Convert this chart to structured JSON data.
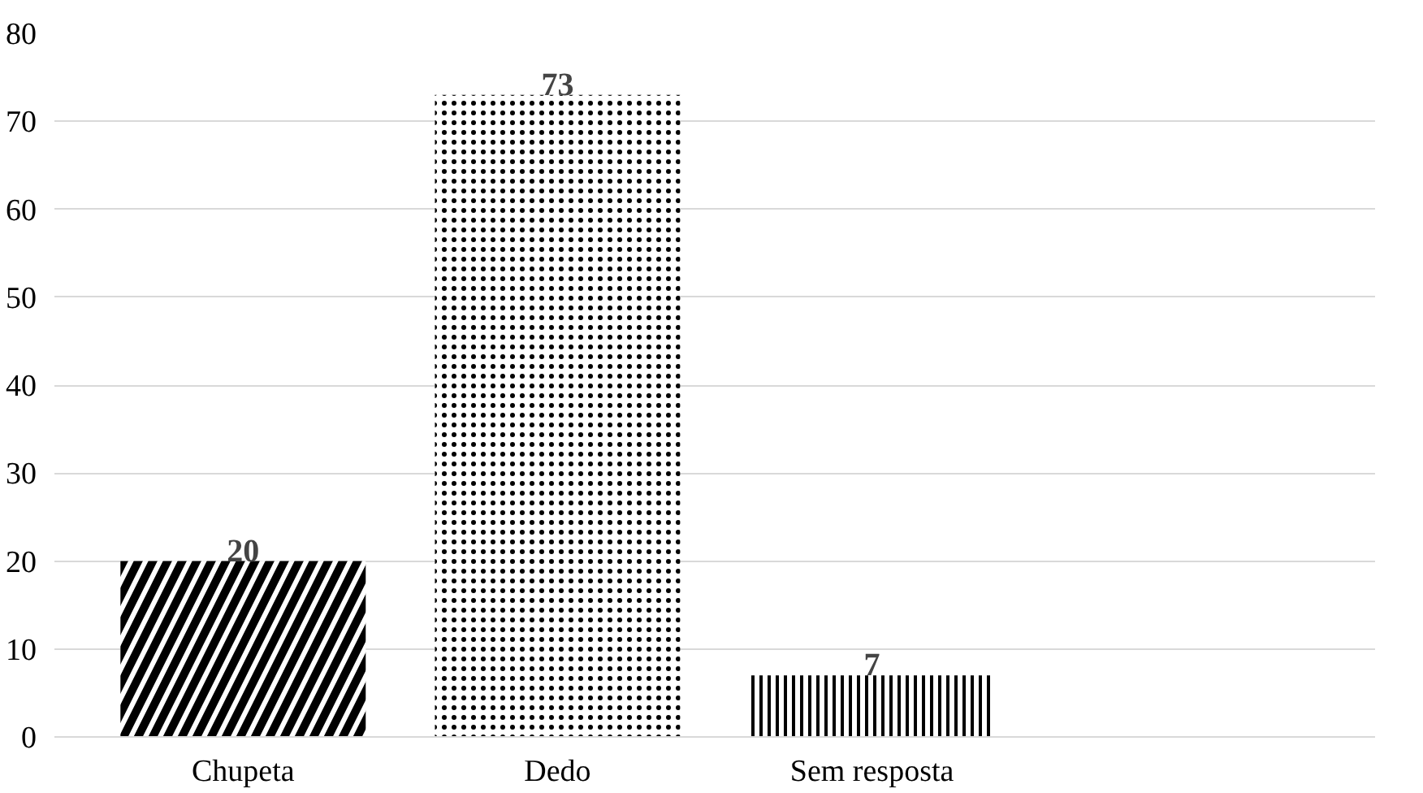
{
  "chart_data": {
    "type": "bar",
    "categories": [
      "Chupeta",
      "Dedo",
      "Sem resposta",
      null
    ],
    "values": [
      20,
      73,
      7,
      null
    ],
    "colors": [
      "#000000",
      "#000000",
      "#000000",
      "#000000"
    ],
    "ylim": [
      0,
      80
    ],
    "yticks": [
      0,
      10,
      20,
      30,
      40,
      50,
      60,
      70,
      80
    ],
    "grid": "y",
    "data_labels": true
  }
}
